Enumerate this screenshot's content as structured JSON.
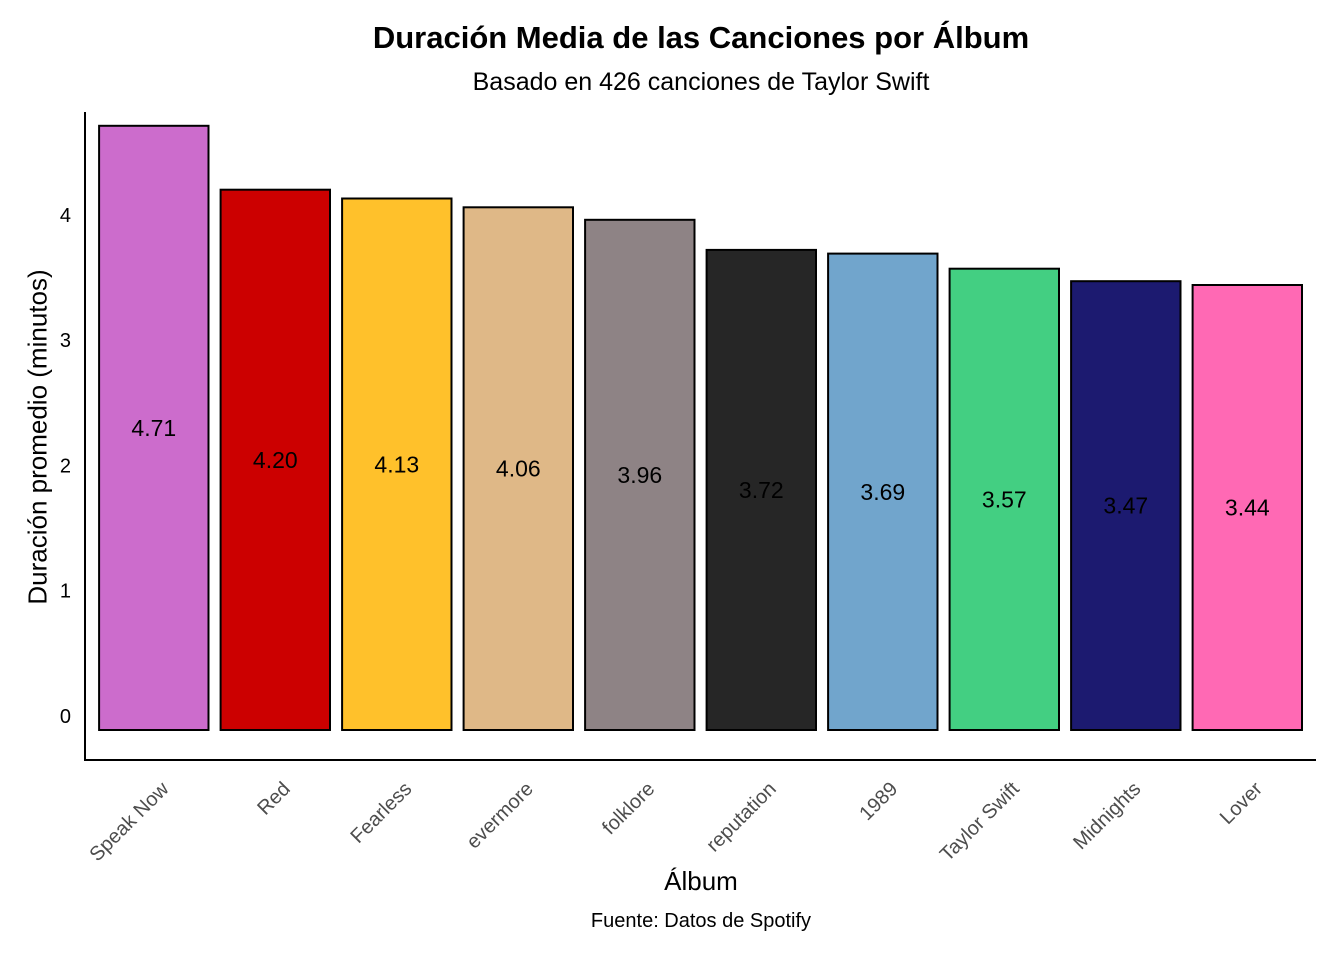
{
  "chart_data": {
    "type": "bar",
    "title": "Duración Media de las Canciones por Álbum",
    "subtitle": "Basado en 426 canciones de Taylor Swift",
    "xlabel": "Álbum",
    "ylabel": "Duración promedio (minutos)",
    "caption": "Fuente: Datos de Spotify",
    "categories": [
      "Speak Now",
      "Red",
      "Fearless",
      "evermore",
      "folklore",
      "reputation",
      "1989",
      "Taylor Swift",
      "Midnights",
      "Lover"
    ],
    "values": [
      4.71,
      4.2,
      4.13,
      4.06,
      3.96,
      3.72,
      3.69,
      3.57,
      3.47,
      3.44
    ],
    "labels": [
      "4.71",
      "4.20",
      "4.13",
      "4.06",
      "3.96",
      "3.72",
      "3.69",
      "3.57",
      "3.47",
      "3.44"
    ],
    "colors": [
      "#CC6CCC",
      "#CC0000",
      "#FFC12B",
      "#DFB887",
      "#8E8385",
      "#262626",
      "#71A5CC",
      "#43CF82",
      "#1C1A70",
      "#FF69B4"
    ],
    "label_colors": [
      "#000000",
      "#000000",
      "#000000",
      "#000000",
      "#000000",
      "#000000",
      "#000000",
      "#000000",
      "#000000",
      "#000000"
    ],
    "yticks": [
      0,
      1,
      2,
      3,
      4
    ],
    "ylim": [
      -0.1,
      4.8
    ],
    "grid": false,
    "legend": "none"
  }
}
